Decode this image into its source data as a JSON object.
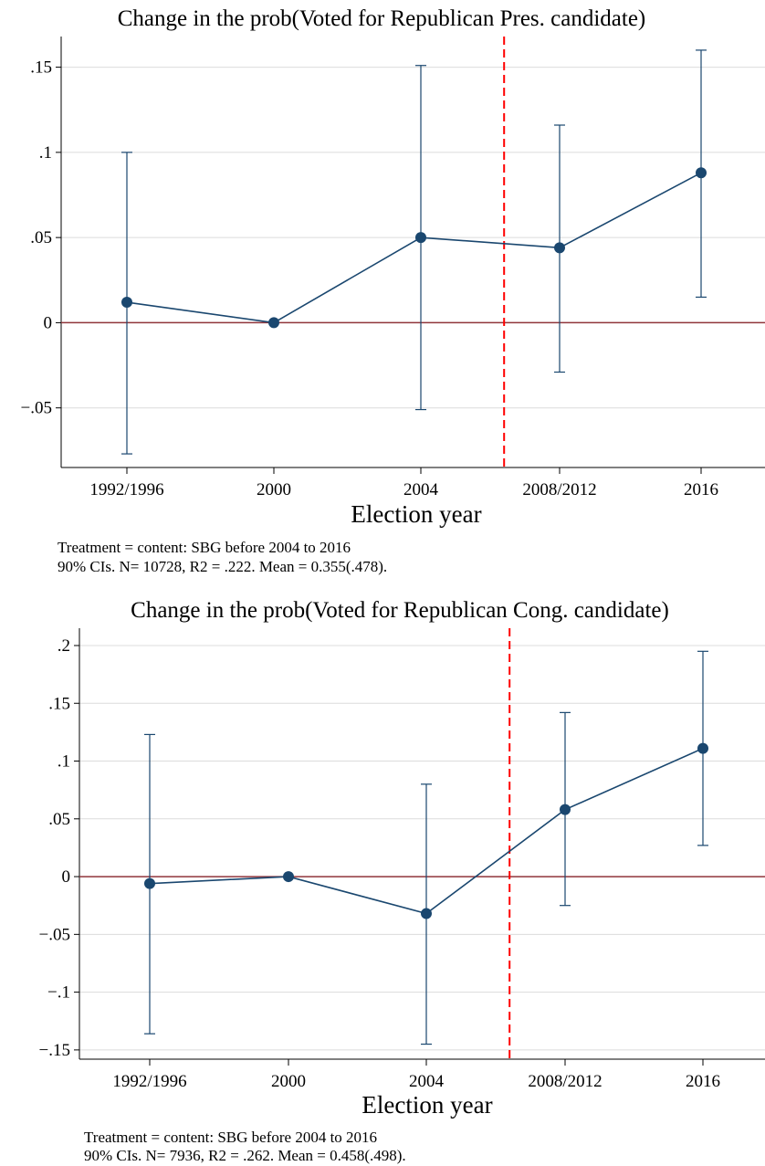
{
  "chart_data": [
    {
      "type": "line",
      "title": "Change in the prob(Voted for Republican Pres. candidate)",
      "xlabel": "Election year",
      "ylabel": "",
      "categories": [
        "1992/1996",
        "2000",
        "2004",
        "2008/2012",
        "2016"
      ],
      "yticks": [
        -0.05,
        0,
        0.05,
        0.1,
        0.15
      ],
      "ytick_labels": [
        "−.05",
        "0",
        ".05",
        ".1",
        ".15"
      ],
      "ylim": [
        -0.085,
        0.168
      ],
      "series": [
        {
          "values": [
            0.012,
            0.0,
            0.05,
            0.044,
            0.088
          ],
          "ci_low": [
            -0.077,
            0.0,
            -0.051,
            -0.029,
            0.015
          ],
          "ci_high": [
            0.1,
            0.0,
            0.151,
            0.116,
            0.16
          ]
        }
      ],
      "treatment_line_x": 2.6,
      "notes": [
        "Treatment = content: SBG before 2004 to 2016",
        "90% CIs. N= 10728, R2 = .222. Mean = 0.355(.478)."
      ],
      "grid": true,
      "colors": {
        "series": "#1a476f",
        "zero": "#90353b",
        "treatment": "#ff0000",
        "grid": "#dcdcdc"
      }
    },
    {
      "type": "line",
      "title": "Change in the prob(Voted for Republican Cong. candidate)",
      "xlabel": "Election year",
      "ylabel": "",
      "categories": [
        "1992/1996",
        "2000",
        "2004",
        "2008/2012",
        "2016"
      ],
      "yticks": [
        -0.15,
        -0.1,
        -0.05,
        0,
        0.05,
        0.1,
        0.15,
        0.2
      ],
      "ytick_labels": [
        "−.15",
        "−.1",
        "−.05",
        "0",
        ".05",
        ".1",
        ".15",
        ".2"
      ],
      "ylim": [
        -0.158,
        0.215
      ],
      "series": [
        {
          "values": [
            -0.006,
            0.0,
            -0.032,
            0.058,
            0.111
          ],
          "ci_low": [
            -0.136,
            0.0,
            -0.145,
            -0.025,
            0.027
          ],
          "ci_high": [
            0.123,
            0.0,
            0.08,
            0.142,
            0.195
          ]
        }
      ],
      "treatment_line_x": 2.6,
      "notes": [
        "Treatment = content: SBG before 2004 to 2016",
        "90% CIs. N= 7936, R2 = .262. Mean = 0.458(.498)."
      ],
      "grid": true,
      "colors": {
        "series": "#1a476f",
        "zero": "#90353b",
        "treatment": "#ff0000",
        "grid": "#dcdcdc"
      }
    }
  ]
}
